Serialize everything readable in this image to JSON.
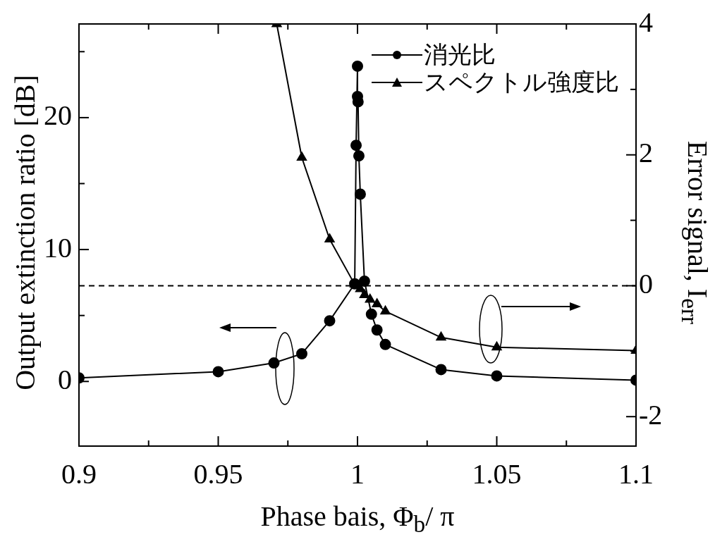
{
  "chart_data": {
    "type": "line",
    "xlabel": "Phase bais, Φ$_{b}$/ π",
    "ylabel": "Output extinction ratio [dB]",
    "y2label": "Error signal, I$_{err}$",
    "xlim": [
      0.9,
      1.1
    ],
    "xticks": [
      0.9,
      {
        "value": 0.925,
        "label": null
      },
      0.95,
      {
        "value": 0.975,
        "label": null
      },
      1,
      {
        "value": 1.025,
        "label": null
      },
      1.05,
      {
        "value": 1.075,
        "label": null
      },
      1.1
    ],
    "ylim": [
      -4.9,
      27.1
    ],
    "yticks": [
      0,
      {
        "value": 5,
        "label": null
      },
      10,
      {
        "value": 15,
        "label": null
      },
      20,
      {
        "value": 25,
        "label": null
      }
    ],
    "y2lim": [
      -2.45,
      4
    ],
    "y2ticks": [
      -2,
      {
        "value": -1,
        "label": null
      },
      0,
      {
        "value": 1,
        "label": null
      },
      2,
      {
        "value": 3,
        "label": null
      },
      4
    ],
    "series": [
      {
        "name": "消光比",
        "color": "#000000",
        "marker": "circle",
        "x": [
          0.9,
          0.95,
          0.97,
          0.98,
          0.99,
          0.999,
          0.9995,
          1.0,
          1.0,
          1.0002,
          1.0005,
          1.001,
          1.0025,
          1.005,
          1.007,
          1.01,
          1.03,
          1.05,
          1.1
        ],
        "values": [
          0.27,
          0.74,
          1.4,
          2.1,
          4.6,
          7.4,
          17.9,
          23.9,
          21.6,
          21.2,
          17.1,
          14.2,
          7.6,
          5.1,
          3.9,
          2.8,
          0.9,
          0.42,
          0.1
        ]
      },
      {
        "name": "スペクトル強度比",
        "color": "#000000",
        "marker": "triangle",
        "axis": "y2",
        "x": [
          0.971,
          0.98,
          0.99,
          0.999,
          1.001,
          1.0025,
          1.0045,
          1.007,
          1.01,
          1.03,
          1.05,
          1.1
        ],
        "values": [
          4,
          1.96,
          0.71,
          0.02,
          -0.05,
          -0.14,
          -0.21,
          -0.28,
          -0.39,
          -0.79,
          -0.94,
          -0.99
        ]
      }
    ],
    "ref_lines": [
      {
        "axis": "y2",
        "value": 0,
        "line_style": "dashed",
        "color": "#000000"
      }
    ],
    "legend": "top right",
    "grid": false,
    "line_style": "solid"
  }
}
